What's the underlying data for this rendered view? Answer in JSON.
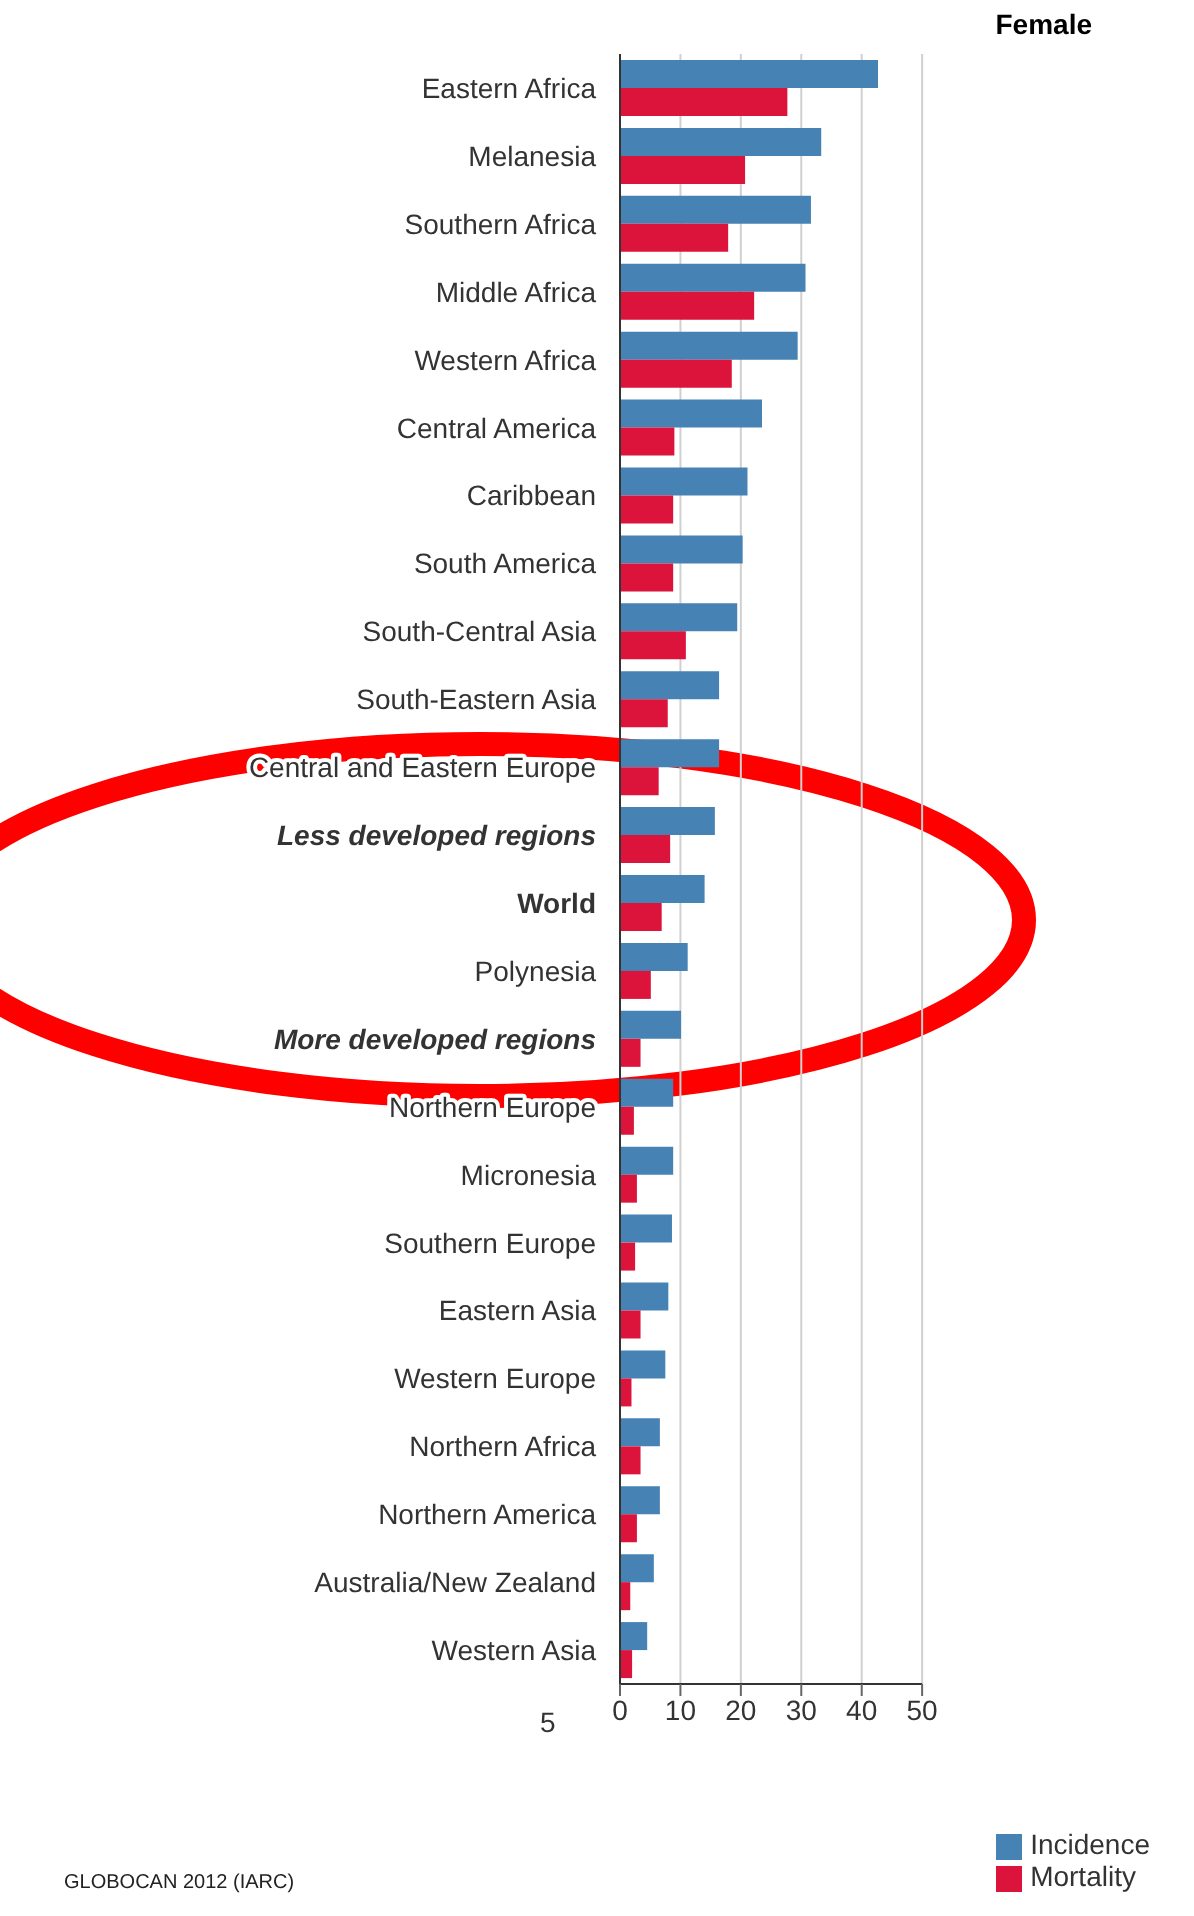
{
  "chart_data": {
    "type": "bar",
    "orientation": "horizontal",
    "title": "Female",
    "categories": [
      "Eastern Africa",
      "Melanesia",
      "Southern Africa",
      "Middle Africa",
      "Western Africa",
      "Central America",
      "Caribbean",
      "South America",
      "South-Central Asia",
      "South-Eastern Asia",
      "Central and Eastern Europe",
      "Less developed regions",
      "World",
      "Polynesia",
      "More developed regions",
      "Northern Europe",
      "Micronesia",
      "Southern Europe",
      "Eastern Asia",
      "Western Europe",
      "Northern Africa",
      "Northern America",
      "Australia/New Zealand",
      "Western Asia"
    ],
    "series": [
      {
        "name": "Incidence",
        "color": "#4682b4",
        "values": [
          42.7,
          33.3,
          31.6,
          30.7,
          29.4,
          23.5,
          21.1,
          20.3,
          19.4,
          16.4,
          16.4,
          15.7,
          14.0,
          11.2,
          10.1,
          8.8,
          8.8,
          8.6,
          8.0,
          7.5,
          6.6,
          6.6,
          5.6,
          4.5
        ]
      },
      {
        "name": "Mortality",
        "color": "#dc143c",
        "values": [
          27.7,
          20.7,
          17.9,
          22.2,
          18.5,
          9.0,
          8.8,
          8.8,
          10.9,
          7.9,
          6.4,
          8.3,
          6.9,
          5.1,
          3.4,
          2.3,
          2.8,
          2.5,
          3.4,
          1.9,
          3.4,
          2.8,
          1.7,
          2.0
        ]
      }
    ],
    "xlim": [
      0,
      50
    ],
    "xticks": [
      0,
      10,
      20,
      30,
      40,
      50
    ],
    "grid": "x",
    "legend": "bottom right",
    "annotations": [
      "5",
      "GLOBOCAN 2012 (IARC)"
    ]
  }
}
